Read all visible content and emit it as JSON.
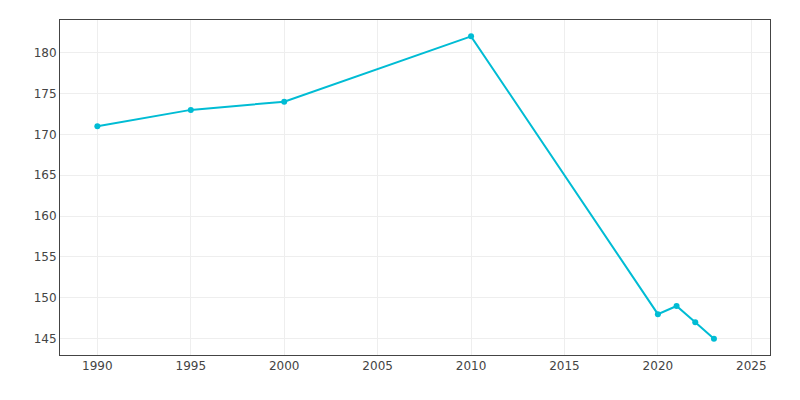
{
  "chart_data": {
    "type": "line",
    "x": [
      1990,
      1995,
      2000,
      2010,
      2020,
      2021,
      2022,
      2023
    ],
    "values": [
      171,
      173,
      174,
      182,
      148,
      149,
      147,
      145
    ],
    "color": "#00bcd4",
    "marker": "circle",
    "xlim": [
      1988,
      2026
    ],
    "xticks": [
      1990,
      1995,
      2000,
      2005,
      2010,
      2015,
      2020,
      2025
    ],
    "ylim": [
      143,
      184
    ],
    "yticks": [
      145,
      150,
      155,
      160,
      165,
      170,
      175,
      180
    ],
    "grid": true
  }
}
